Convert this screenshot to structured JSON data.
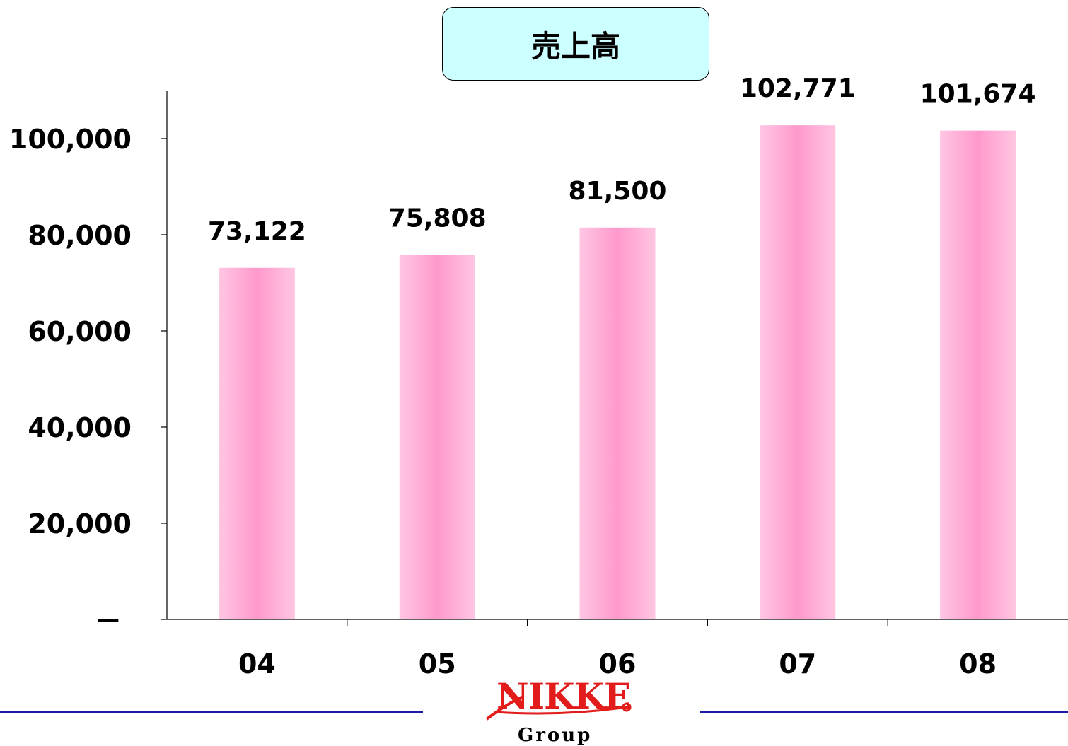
{
  "chart_data": {
    "type": "bar",
    "title": "売上高",
    "categories": [
      "04",
      "05",
      "06",
      "07",
      "08"
    ],
    "values": [
      73122,
      75808,
      81500,
      102771,
      101674
    ],
    "data_labels": [
      "73,122",
      "75,808",
      "81,500",
      "102,771",
      "101,674"
    ],
    "ylim": [
      0,
      110000
    ],
    "yticks": [
      0,
      20000,
      40000,
      60000,
      80000,
      100000
    ],
    "ytick_labels": [
      "－",
      "20,000",
      "40,000",
      "60,000",
      "80,000",
      "100,000"
    ],
    "xlabel": "",
    "ylabel": "",
    "grid": false,
    "bar_color": "#ff99cc",
    "bar_highlight": "#ffc6e2"
  },
  "logo": {
    "word": "NIKKE",
    "sub": "Group",
    "color": "#e21b1b"
  }
}
